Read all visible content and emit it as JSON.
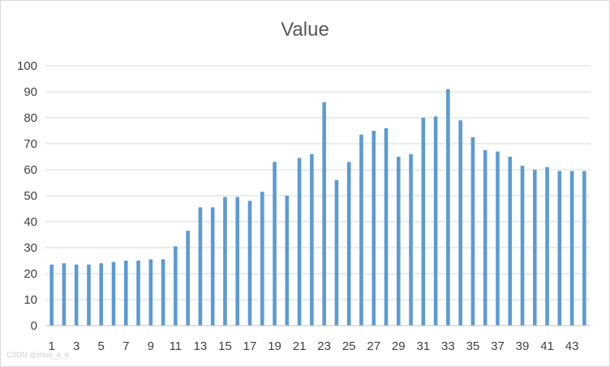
{
  "chart_data": {
    "type": "bar",
    "title": "Value",
    "xlabel": "",
    "ylabel": "",
    "ylim": [
      0,
      100
    ],
    "yticks": [
      0,
      10,
      20,
      30,
      40,
      50,
      60,
      70,
      80,
      90,
      100
    ],
    "grid": true,
    "legend": "none",
    "bar_color": "#5b9bd5",
    "categories": [
      1,
      2,
      3,
      4,
      5,
      6,
      7,
      8,
      9,
      10,
      11,
      12,
      13,
      14,
      15,
      16,
      17,
      18,
      19,
      20,
      21,
      22,
      23,
      24,
      25,
      26,
      27,
      28,
      29,
      30,
      31,
      32,
      33,
      34,
      35,
      36,
      37,
      38,
      39,
      40,
      41,
      42,
      43,
      44
    ],
    "tick_labels_shown": [
      1,
      3,
      5,
      7,
      9,
      11,
      13,
      15,
      17,
      19,
      21,
      23,
      25,
      27,
      29,
      31,
      33,
      35,
      37,
      39,
      41,
      43
    ],
    "values": [
      23.5,
      24,
      23.5,
      23.5,
      24,
      24.5,
      25,
      25,
      25.5,
      25.5,
      30.5,
      36.5,
      45.5,
      45.5,
      49.5,
      49.5,
      48,
      51.5,
      63,
      50,
      64.5,
      66,
      86,
      56,
      63,
      73.5,
      75,
      76,
      65,
      66,
      80,
      80.5,
      91,
      79,
      72.5,
      67.5,
      67,
      65,
      61.5,
      60,
      61,
      59.5,
      59.5,
      59.5
    ]
  },
  "watermark": "CSDN @zhou_d_d"
}
